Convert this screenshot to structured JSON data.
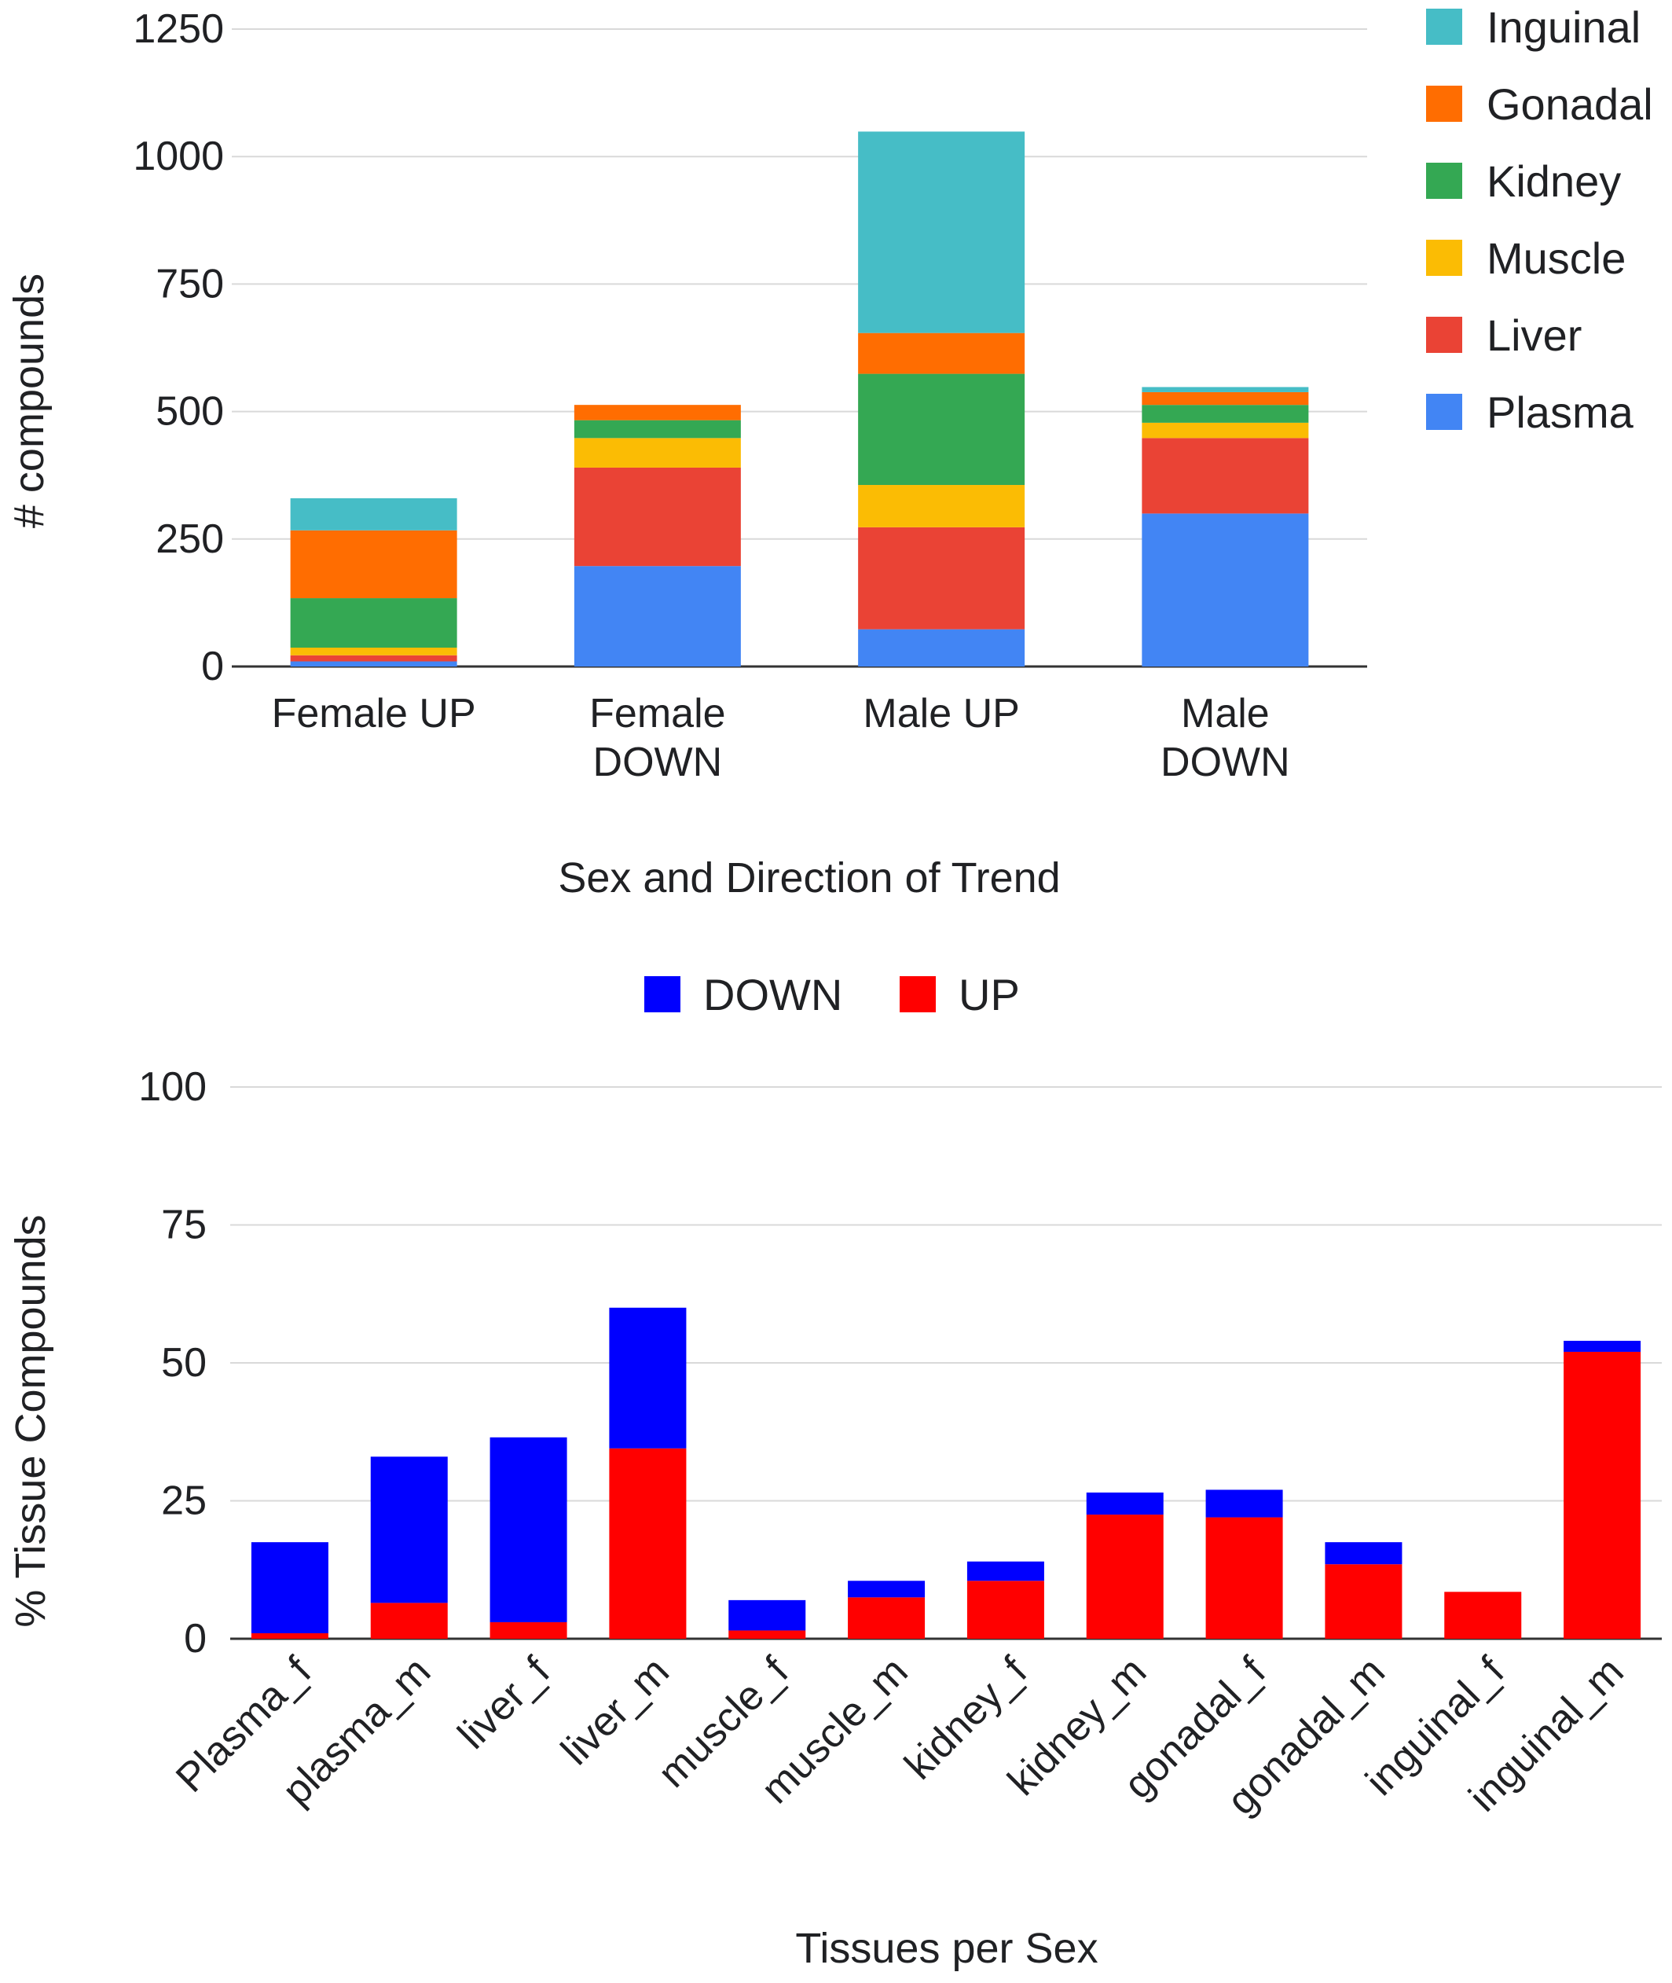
{
  "chart_data": [
    {
      "type": "bar",
      "stacked": true,
      "categories": [
        [
          "Female UP"
        ],
        [
          "Female",
          "DOWN"
        ],
        [
          "Male UP"
        ],
        [
          "Male",
          "DOWN"
        ]
      ],
      "series": [
        {
          "name": "Plasma",
          "color": "#4285F4",
          "values": [
            10,
            197,
            73,
            300
          ]
        },
        {
          "name": "Liver",
          "color": "#EA4335",
          "values": [
            12,
            193,
            200,
            148
          ]
        },
        {
          "name": "Muscle",
          "color": "#FBBC04",
          "values": [
            15,
            58,
            83,
            30
          ]
        },
        {
          "name": "Kidney",
          "color": "#34A853",
          "values": [
            97,
            35,
            218,
            35
          ]
        },
        {
          "name": "Gonadal",
          "color": "#FF6D01",
          "values": [
            133,
            30,
            80,
            25
          ]
        },
        {
          "name": "Inguinal",
          "color": "#46BDC6",
          "values": [
            63,
            0,
            395,
            10
          ]
        }
      ],
      "legend_order": [
        "Inguinal",
        "Gonadal",
        "Kidney",
        "Muscle",
        "Liver",
        "Plasma"
      ],
      "legend_position": "right",
      "xlabel": "Sex and Direction of Trend",
      "ylabel": "# compounds",
      "ylim": [
        0,
        1250
      ],
      "yticks": [
        "0",
        "250",
        "500",
        "750",
        "1000",
        "1250"
      ],
      "grid": true
    },
    {
      "type": "bar",
      "stacked": true,
      "categories": [
        "Plasma_f",
        "plasma_m",
        "liver_f",
        "liver_m",
        "muscle_f",
        "muscle_m",
        "kidney_f",
        "kidney_m",
        "gonadal_f",
        "gonadal_m",
        "inguinal_f",
        "inguinal_m"
      ],
      "series": [
        {
          "name": "UP",
          "color": "#FF0000",
          "values": [
            1,
            6.5,
            3,
            34.5,
            1.5,
            7.5,
            10.5,
            22.5,
            22,
            13.5,
            8.5,
            52
          ]
        },
        {
          "name": "DOWN",
          "color": "#0000FF",
          "values": [
            16.5,
            26.5,
            33.5,
            25.5,
            5.5,
            3,
            3.5,
            4,
            5,
            4,
            0,
            2
          ]
        }
      ],
      "legend_order": [
        "DOWN",
        "UP"
      ],
      "legend_position": "top",
      "xlabel": "Tissues per Sex",
      "ylabel": "% Tissue Compounds",
      "ylim": [
        0,
        100
      ],
      "yticks": [
        "0",
        "25",
        "50",
        "75",
        "100"
      ],
      "grid": true
    }
  ]
}
